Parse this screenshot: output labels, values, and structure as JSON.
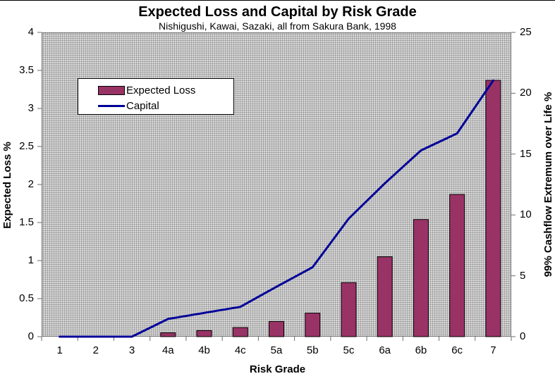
{
  "title": "Expected Loss and Capital by Risk Grade",
  "subtitle": "Nishigushi, Kawai, Sazaki, all from Sakura Bank, 1998",
  "chart_data": {
    "type": "bar",
    "combo": "bar+line",
    "categories": [
      "1",
      "2",
      "3",
      "4a",
      "4b",
      "4c",
      "5a",
      "5b",
      "5c",
      "6a",
      "6b",
      "6c",
      "7"
    ],
    "series": [
      {
        "name": "Expected Loss",
        "type": "bar",
        "axis": "left",
        "color": "#993366",
        "values": [
          0,
          0,
          0,
          0.05,
          0.08,
          0.12,
          0.2,
          0.31,
          0.71,
          1.05,
          1.54,
          1.87,
          3.37
        ]
      },
      {
        "name": "Capital",
        "type": "line",
        "axis": "right",
        "color": "#000099",
        "values": [
          0,
          0,
          0,
          1.45,
          1.95,
          2.45,
          4.1,
          5.7,
          9.7,
          12.6,
          15.3,
          16.7,
          21.05
        ]
      }
    ],
    "xlabel": "Risk Grade",
    "ylabel_left": "Expected Loss %",
    "ylabel_right": "99% Cashflow Extremum over Life %",
    "ylim_left": [
      0,
      4
    ],
    "ylim_right": [
      0,
      25
    ],
    "yticks_left": [
      0,
      0.5,
      1,
      1.5,
      2,
      2.5,
      3,
      3.5,
      4
    ],
    "yticks_right": [
      0,
      5,
      10,
      15,
      20,
      25
    ],
    "grid": false,
    "legend_position": "upper-left-inside",
    "plot_background": "gray stipple dots"
  }
}
